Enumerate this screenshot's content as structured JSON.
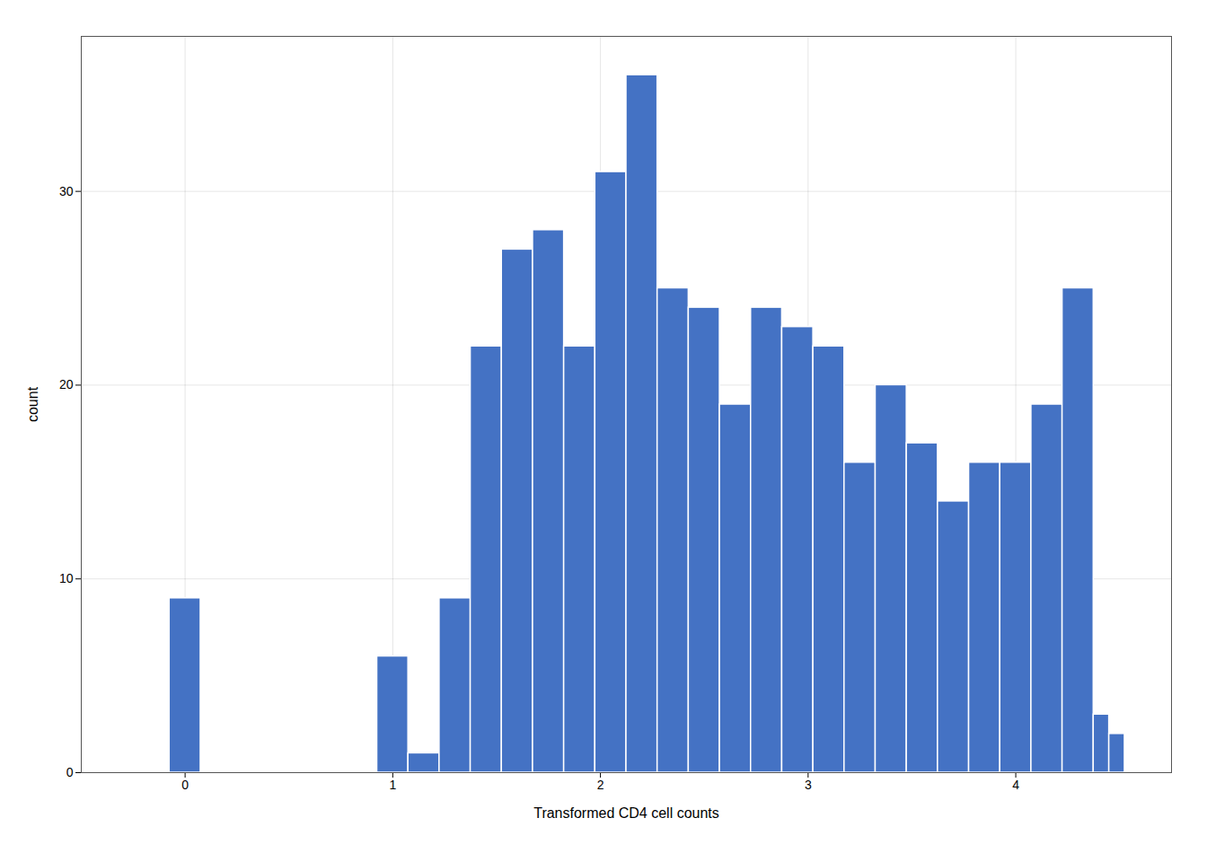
{
  "chart_data": {
    "type": "histogram",
    "xlabel": "Transformed CD4 cell counts",
    "ylabel": "count",
    "color": "#4472c4",
    "left": [
      -0.075,
      0.925,
      1.075,
      1.225,
      1.375,
      1.525,
      1.675,
      1.825,
      1.975,
      2.125,
      2.275,
      2.425,
      2.575,
      2.725,
      2.875,
      3.025,
      3.175,
      3.325,
      3.475,
      3.625,
      3.775,
      3.925,
      4.075,
      4.225,
      4.375,
      4.45
    ],
    "right": [
      0.075,
      1.075,
      1.225,
      1.375,
      1.525,
      1.675,
      1.825,
      1.975,
      2.125,
      2.275,
      2.425,
      2.575,
      2.725,
      2.875,
      3.025,
      3.175,
      3.325,
      3.475,
      3.625,
      3.775,
      3.925,
      4.075,
      4.225,
      4.375,
      4.45,
      4.525
    ],
    "values": [
      9,
      6,
      1,
      9,
      22,
      27,
      28,
      22,
      31,
      36,
      25,
      24,
      19,
      24,
      23,
      22,
      16,
      20,
      17,
      14,
      16,
      16,
      19,
      25,
      3,
      2
    ],
    "xlim": [
      -0.5,
      4.75
    ],
    "ylim": [
      0,
      38
    ],
    "xticks": [
      0,
      1,
      2,
      3,
      4
    ],
    "yticks": [
      0,
      10,
      20,
      30
    ],
    "grid": true
  }
}
